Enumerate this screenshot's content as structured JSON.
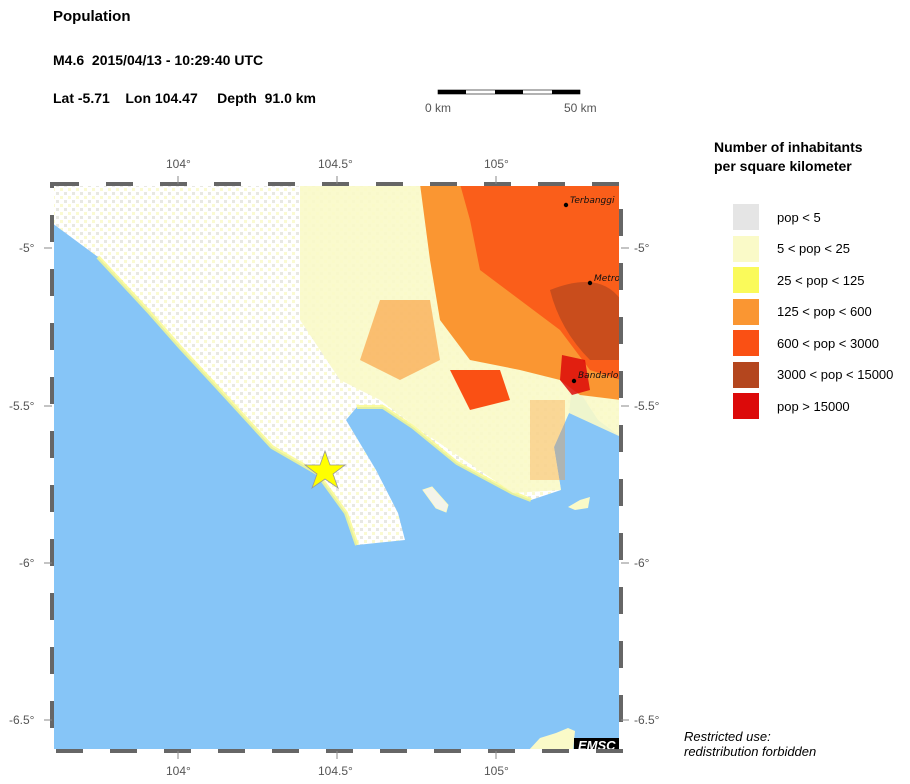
{
  "header": {
    "title": "Population",
    "event": "M4.6  2015/04/13 - 10:29:40 UTC",
    "location": "Lat -5.71    Lon 104.47     Depth  91.0 km"
  },
  "scale_bar": {
    "start_label": "0 km",
    "end_label": "50 km"
  },
  "map": {
    "lon_ticks": [
      "104°",
      "104.5°",
      "105°"
    ],
    "lat_ticks": [
      "-5°",
      "-5.5°",
      "-6°",
      "-6.5°"
    ],
    "cities": [
      {
        "name": "Terbanggi",
        "lat": -4.86,
        "lon": 105.22
      },
      {
        "name": "Metro",
        "lat": -5.11,
        "lon": 105.31
      },
      {
        "name": "Bandarlo",
        "lat": -5.43,
        "lon": 105.26
      }
    ],
    "epicenter": {
      "lat": -5.71,
      "lon": 104.47,
      "icon": "star-icon",
      "color": "#ffff00"
    },
    "sea_color": "#86c5f7",
    "watermark": "EMSC"
  },
  "legend": {
    "title_line1": "Number of inhabitants",
    "title_line2": "per square kilometer",
    "items": [
      {
        "label": "pop < 5",
        "color": "#e5e5e5"
      },
      {
        "label": "5 < pop < 25",
        "color": "#fafac8"
      },
      {
        "label": "25 < pop < 125",
        "color": "#fafa5a"
      },
      {
        "label": "125 < pop < 600",
        "color": "#fa9632"
      },
      {
        "label": "600 < pop < 3000",
        "color": "#fa5014"
      },
      {
        "label": "3000 < pop < 15000",
        "color": "#b4461e"
      },
      {
        "label": "pop > 15000",
        "color": "#dc0a0a"
      }
    ]
  },
  "notice": {
    "line1": "Restricted use:",
    "line2": "redistribution forbidden"
  }
}
